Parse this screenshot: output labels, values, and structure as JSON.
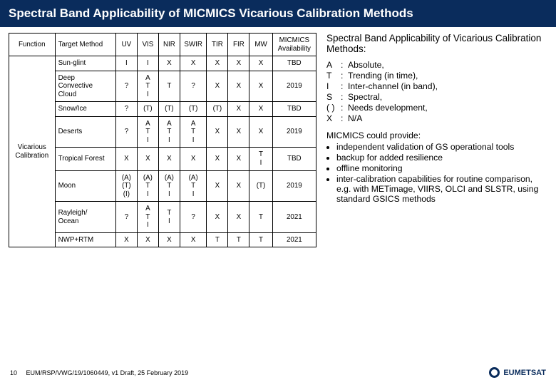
{
  "header": {
    "title": "Spectral Band Applicability of MICMICS Vicarious Calibration Methods"
  },
  "table": {
    "columns": [
      "Function",
      "Target Method",
      "UV",
      "VIS",
      "NIR",
      "SWIR",
      "TIR",
      "FIR",
      "MW",
      "MICMICS Availability"
    ],
    "function_label": "Vicarious\nCalibration",
    "rows": [
      {
        "target": "Sun-glint",
        "cells": [
          "I",
          "I",
          "X",
          "X",
          "X",
          "X",
          "X",
          "TBD"
        ]
      },
      {
        "target": "Deep\nConvective\nCloud",
        "cells": [
          "?",
          "A\nT\nI",
          "T",
          "?",
          "X",
          "X",
          "X",
          "2019"
        ]
      },
      {
        "target": "Snow/Ice",
        "cells": [
          "?",
          "(T)",
          "(T)",
          "(T)",
          "(T)",
          "X",
          "X",
          "TBD"
        ]
      },
      {
        "target": "Deserts",
        "cells": [
          "?",
          "A\nT\nI",
          "A\nT\nI",
          "A\nT\nI",
          "X",
          "X",
          "X",
          "2019"
        ]
      },
      {
        "target": "Tropical Forest",
        "cells": [
          "X",
          "X",
          "X",
          "X",
          "X",
          "X",
          "T\nI",
          "TBD"
        ]
      },
      {
        "target": "Moon",
        "cells": [
          "(A)\n(T)\n(I)",
          "(A)\nT\nI",
          "(A)\nT\nI",
          "(A)\nT\nI",
          "X",
          "X",
          "(T)",
          "2019"
        ]
      },
      {
        "target": "Rayleigh/\nOcean",
        "cells": [
          "?",
          "A\nT\nI",
          "T\nI",
          "?",
          "X",
          "X",
          "T",
          "2021"
        ]
      },
      {
        "target": "NWP+RTM",
        "cells": [
          "X",
          "X",
          "X",
          "X",
          "T",
          "T",
          "T",
          "2021"
        ]
      }
    ]
  },
  "sidebar": {
    "heading": "Spectral Band Applicability of Vicarious Calibration Methods:",
    "legend": [
      {
        "k": "A",
        "v": "Absolute,"
      },
      {
        "k": "T",
        "v": "Trending (in time),"
      },
      {
        "k": "I",
        "v": "Inter-channel (in band),"
      },
      {
        "k": "S",
        "v": "Spectral,"
      },
      {
        "k": "( )",
        "v": "Needs development,"
      },
      {
        "k": "X",
        "v": "N/A"
      }
    ],
    "provide_head": "MICMICS could provide:",
    "bullets": [
      "independent validation of GS operational tools",
      "backup for added resilience",
      "offline monitoring",
      "inter-calibration capabilities for routine comparison, e.g. with METimage, VIIRS, OLCI and SLSTR, using standard GSICS methods"
    ]
  },
  "footer": {
    "page_no": "10",
    "ref": "EUM/RSP/VWG/19/1060449, v1 Draft, 25 February 2019",
    "org": "EUMETSAT"
  },
  "colors": {
    "header_bg": "#0a2c5c",
    "header_text": "#ffffff",
    "text": "#000000",
    "border": "#000000"
  }
}
